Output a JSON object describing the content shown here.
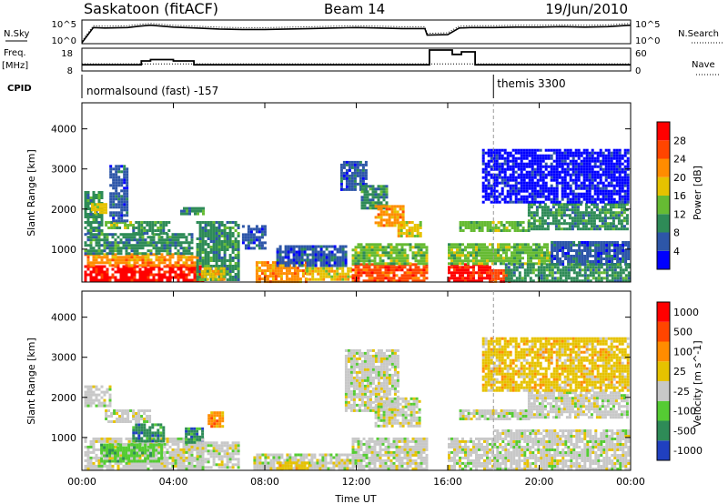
{
  "header": {
    "title": "Saskatoon (fitACF)",
    "beam": "Beam 14",
    "date": "19/Jun/2010"
  },
  "noise_panel": {
    "left_label": "N.Sky",
    "left_ticks": [
      "10^5",
      "10^0"
    ],
    "right_label": "N.Search",
    "right_ticks": [
      "10^5",
      "10^0"
    ]
  },
  "freq_panel": {
    "left_label_1": "Freq.",
    "left_label_2": "[MHz]",
    "left_ticks": [
      "18",
      "8"
    ],
    "right_label": "Nave",
    "right_ticks": [
      "60",
      "0"
    ]
  },
  "cpid_panel": {
    "label": "CPID",
    "modes": [
      {
        "text": "normalsound (fast) -157",
        "start_hour": 0
      },
      {
        "text": "themis 3300",
        "start_hour": 18
      }
    ]
  },
  "axes": {
    "ylabel": "Slant Range [km]",
    "yticks": [
      "1000",
      "2000",
      "3000",
      "4000"
    ],
    "xticks": [
      "00:00",
      "04:00",
      "08:00",
      "12:00",
      "16:00",
      "20:00",
      "00:00"
    ],
    "xlabel": "Time UT"
  },
  "power_colorbar": {
    "label": "Power [dB]",
    "tick_labels": [
      "4",
      "8",
      "12",
      "16",
      "20",
      "24",
      "28"
    ],
    "colors": [
      "#0000ff",
      "#2d56a8",
      "#2e8b57",
      "#66bb33",
      "#e6c200",
      "#ff8c00",
      "#ff4500",
      "#ff0000"
    ]
  },
  "velocity_colorbar": {
    "label": "Velocity [m s^-1]",
    "tick_labels": [
      "1000",
      "500",
      "100",
      "25",
      "-25",
      "-100",
      "-500",
      "-1000"
    ],
    "colors": [
      "#2040c0",
      "#2e8b57",
      "#55cc33",
      "#c8c8c8",
      "#e6c200",
      "#ff8c00",
      "#ff4500",
      "#ff0000"
    ]
  },
  "chart_data": [
    {
      "type": "line",
      "name": "noise",
      "x_unit": "hour UT",
      "x": [
        0,
        0.5,
        1,
        2,
        2.5,
        3,
        4,
        5,
        6,
        7,
        8,
        9,
        10,
        11,
        12,
        13,
        14,
        15,
        15.1,
        16,
        16.5,
        17,
        18,
        19,
        20,
        21,
        22,
        23,
        24
      ],
      "values": [
        0.2,
        3.4,
        3.3,
        3.4,
        3.7,
        3.9,
        3.5,
        3.3,
        3.1,
        3.0,
        3.0,
        3.1,
        3.2,
        3.3,
        3.4,
        3.3,
        3.2,
        3.2,
        1.8,
        1.9,
        3.3,
        3.4,
        3.4,
        3.5,
        3.5,
        3.6,
        3.5,
        3.6,
        3.9
      ],
      "ylim": [
        0,
        5
      ]
    },
    {
      "type": "line",
      "name": "frequency",
      "y_unit": "MHz",
      "x": [
        0,
        2.6,
        2.6,
        3.0,
        3.0,
        4.0,
        4.0,
        4.9,
        4.9,
        15.2,
        15.2,
        16.2,
        16.2,
        16.6,
        16.6,
        17.2,
        17.2,
        24
      ],
      "values": [
        10.0,
        10.0,
        12.2,
        12.2,
        13.0,
        13.0,
        12.2,
        12.2,
        10.0,
        10.0,
        18.5,
        18.5,
        16.0,
        16.0,
        17.5,
        17.5,
        10.0,
        10.0
      ],
      "ylim": [
        8,
        18
      ]
    },
    {
      "type": "line",
      "name": "nave",
      "x": [
        0,
        15.2,
        15.2,
        17.2,
        17.2,
        24
      ],
      "values": [
        21,
        21,
        21,
        21,
        21,
        21
      ],
      "ylim": [
        0,
        60
      ]
    },
    {
      "type": "heatmap",
      "name": "power",
      "x_unit": "hour UT",
      "y_unit": "km",
      "xlim": [
        0,
        24
      ],
      "ylim": [
        180,
        4650
      ],
      "blobs": [
        {
          "t0": 0.1,
          "t1": 5.3,
          "r0": 220,
          "r1": 600,
          "level": 7
        },
        {
          "t0": 0.1,
          "t1": 5.0,
          "r0": 600,
          "r1": 900,
          "level": 5
        },
        {
          "t0": 0.1,
          "t1": 4.8,
          "r0": 900,
          "r1": 1400,
          "level": 2
        },
        {
          "t0": 0.1,
          "t1": 0.9,
          "r0": 1400,
          "r1": 2450,
          "level": 2
        },
        {
          "t0": 0.4,
          "t1": 1.0,
          "r0": 1900,
          "r1": 2150,
          "level": 4
        },
        {
          "t0": 1.0,
          "t1": 2.2,
          "r0": 1500,
          "r1": 1700,
          "level": 3
        },
        {
          "t0": 1.2,
          "t1": 2.0,
          "r0": 1700,
          "r1": 3100,
          "level": 1
        },
        {
          "t0": 2.2,
          "t1": 3.8,
          "r0": 1400,
          "r1": 1700,
          "level": 2
        },
        {
          "t0": 4.3,
          "t1": 5.3,
          "r0": 1850,
          "r1": 2050,
          "level": 2
        },
        {
          "t0": 5.0,
          "t1": 6.8,
          "r0": 220,
          "r1": 1700,
          "level": 2
        },
        {
          "t0": 5.2,
          "t1": 6.2,
          "r0": 220,
          "r1": 550,
          "level": 4
        },
        {
          "t0": 7.0,
          "t1": 8.0,
          "r0": 1000,
          "r1": 1600,
          "level": 1
        },
        {
          "t0": 7.6,
          "t1": 9.8,
          "r0": 220,
          "r1": 700,
          "level": 5
        },
        {
          "t0": 9.8,
          "t1": 11.8,
          "r0": 220,
          "r1": 550,
          "level": 4
        },
        {
          "t0": 8.5,
          "t1": 11.5,
          "r0": 600,
          "r1": 1100,
          "level": 1
        },
        {
          "t0": 11.3,
          "t1": 12.4,
          "r0": 2500,
          "r1": 3200,
          "level": 1
        },
        {
          "t0": 12.2,
          "t1": 13.3,
          "r0": 2000,
          "r1": 2600,
          "level": 2
        },
        {
          "t0": 12.8,
          "t1": 14.0,
          "r0": 1600,
          "r1": 2100,
          "level": 5
        },
        {
          "t0": 13.8,
          "t1": 14.8,
          "r0": 1300,
          "r1": 1700,
          "level": 4
        },
        {
          "t0": 11.8,
          "t1": 15.1,
          "r0": 220,
          "r1": 650,
          "level": 6
        },
        {
          "t0": 11.8,
          "t1": 15.1,
          "r0": 650,
          "r1": 1150,
          "level": 3
        },
        {
          "t0": 16.0,
          "t1": 17.8,
          "r0": 220,
          "r1": 650,
          "level": 7
        },
        {
          "t0": 17.8,
          "t1": 18.7,
          "r0": 220,
          "r1": 500,
          "level": 6
        },
        {
          "t0": 16.0,
          "t1": 20.5,
          "r0": 650,
          "r1": 1150,
          "level": 3
        },
        {
          "t0": 16.5,
          "t1": 19.5,
          "r0": 1450,
          "r1": 1700,
          "level": 3
        },
        {
          "t0": 19.5,
          "t1": 23.9,
          "r0": 1500,
          "r1": 2150,
          "level": 2
        },
        {
          "t0": 20.5,
          "t1": 23.9,
          "r0": 650,
          "r1": 1200,
          "level": 1
        },
        {
          "t0": 17.5,
          "t1": 23.9,
          "r0": 2200,
          "r1": 3500,
          "level": 0
        },
        {
          "t0": 18.5,
          "t1": 23.9,
          "r0": 220,
          "r1": 650,
          "level": 2
        }
      ]
    },
    {
      "type": "heatmap",
      "name": "velocity",
      "x_unit": "hour UT",
      "y_unit": "km",
      "xlim": [
        0,
        24
      ],
      "ylim": [
        180,
        4650
      ],
      "blobs": [
        {
          "t0": 0.1,
          "t1": 5.3,
          "r0": 220,
          "r1": 1000,
          "level": 3
        },
        {
          "t0": 0.1,
          "t1": 1.2,
          "r0": 1800,
          "r1": 2300,
          "level": 3
        },
        {
          "t0": 1.0,
          "t1": 3.0,
          "r0": 1400,
          "r1": 1700,
          "level": 3
        },
        {
          "t0": 0.8,
          "t1": 3.5,
          "r0": 400,
          "r1": 850,
          "level": 2
        },
        {
          "t0": 2.2,
          "t1": 3.6,
          "r0": 900,
          "r1": 1350,
          "level": 1
        },
        {
          "t0": 4.5,
          "t1": 5.3,
          "r0": 900,
          "r1": 1250,
          "level": 1
        },
        {
          "t0": 5.5,
          "t1": 6.2,
          "r0": 1250,
          "r1": 1650,
          "level": 5
        },
        {
          "t0": 5.0,
          "t1": 6.8,
          "r0": 220,
          "r1": 900,
          "level": 3
        },
        {
          "t0": 7.5,
          "t1": 11.8,
          "r0": 220,
          "r1": 600,
          "level": 3
        },
        {
          "t0": 8.5,
          "t1": 10.0,
          "r0": 220,
          "r1": 400,
          "level": 4
        },
        {
          "t0": 11.5,
          "t1": 13.8,
          "r0": 1700,
          "r1": 3200,
          "level": 3
        },
        {
          "t0": 12.8,
          "t1": 14.8,
          "r0": 1300,
          "r1": 2000,
          "level": 3
        },
        {
          "t0": 11.8,
          "t1": 15.1,
          "r0": 220,
          "r1": 1000,
          "level": 3
        },
        {
          "t0": 16.0,
          "t1": 18.0,
          "r0": 220,
          "r1": 1000,
          "level": 3
        },
        {
          "t0": 16.5,
          "t1": 19.5,
          "r0": 1450,
          "r1": 1700,
          "level": 3
        },
        {
          "t0": 18.0,
          "t1": 23.9,
          "r0": 220,
          "r1": 1200,
          "level": 3
        },
        {
          "t0": 19.5,
          "t1": 23.9,
          "r0": 1500,
          "r1": 2150,
          "level": 3
        },
        {
          "t0": 17.5,
          "t1": 23.9,
          "r0": 2200,
          "r1": 3500,
          "level": 4
        }
      ]
    }
  ]
}
